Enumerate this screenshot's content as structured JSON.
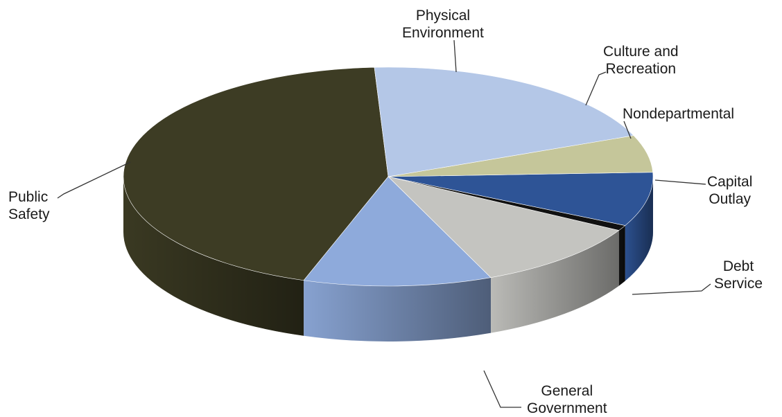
{
  "chart_data": {
    "type": "pie",
    "style": "3d",
    "title": "",
    "legend": "none",
    "slices": [
      {
        "label": "Public Safety",
        "lines": [
          "Public",
          "Safety"
        ],
        "value": 44.0,
        "color": "#3d3c24"
      },
      {
        "label": "Physical Environment",
        "lines": [
          "Physical",
          "Environment"
        ],
        "value": 11.5,
        "color": "#8eaadb"
      },
      {
        "label": "Culture and Recreation",
        "lines": [
          "Culture and",
          "Recreation"
        ],
        "value": 10.5,
        "color": "#c4c4c0"
      },
      {
        "label": "Nondepartmental",
        "lines": [
          "Nondepartmental"
        ],
        "value": 0.8,
        "color": "#111111"
      },
      {
        "label": "Capital Outlay",
        "lines": [
          "Capital",
          "Outlay"
        ],
        "value": 8.0,
        "color": "#2e5496"
      },
      {
        "label": "Debt Service",
        "lines": [
          "Debt",
          "Service"
        ],
        "value": 5.5,
        "color": "#c5c69a"
      },
      {
        "label": "General Government",
        "lines": [
          "General",
          "Government"
        ],
        "value": 19.7,
        "color": "#b4c7e7"
      }
    ]
  }
}
